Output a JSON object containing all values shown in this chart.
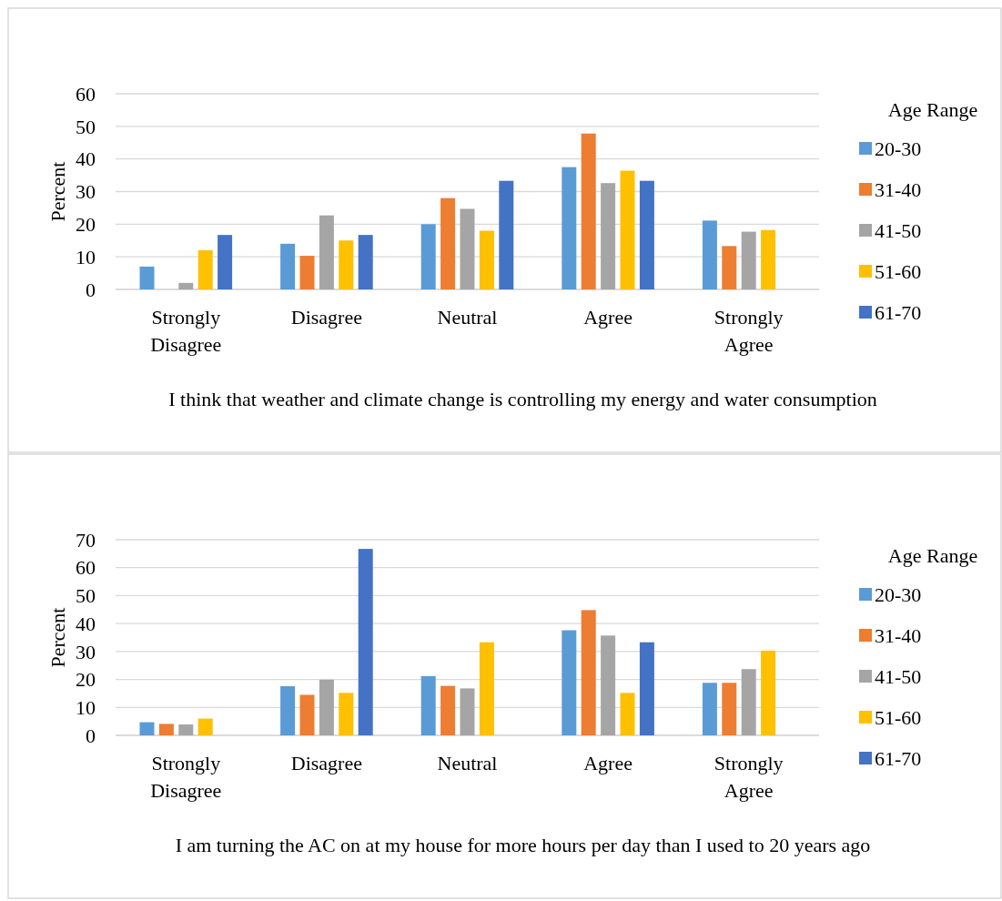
{
  "chart_data": [
    {
      "type": "bar",
      "title": "I think that weather and climate change is controlling my energy and water consumption",
      "ylabel": "Percent",
      "legend_title": "Age Range",
      "categories": [
        "Strongly Disagree",
        "Disagree",
        "Neutral",
        "Agree",
        "Strongly Agree"
      ],
      "ylim": [
        0,
        60
      ],
      "yticks": [
        0,
        10,
        20,
        30,
        40,
        50,
        60
      ],
      "grid": "y",
      "legend": "right",
      "series": [
        {
          "name": "20-30",
          "color": "#5b9bd5",
          "values": [
            7,
            14,
            20,
            37.5,
            21.1
          ]
        },
        {
          "name": "31-40",
          "color": "#ed7d31",
          "values": [
            0,
            10.3,
            28,
            47.8,
            13.3
          ]
        },
        {
          "name": "41-50",
          "color": "#a5a5a5",
          "values": [
            2,
            22.7,
            24.7,
            32.6,
            17.7
          ]
        },
        {
          "name": "51-60",
          "color": "#ffc000",
          "values": [
            12,
            15,
            18,
            36.4,
            18.2
          ]
        },
        {
          "name": "61-70",
          "color": "#4472c4",
          "values": [
            16.7,
            16.7,
            33.3,
            33.3,
            0
          ]
        }
      ]
    },
    {
      "type": "bar",
      "title": "I am turning the AC on at my house for more hours per day than I used to 20 years ago",
      "ylabel": "Percent",
      "legend_title": "Age Range",
      "categories": [
        "Strongly Disagree",
        "Disagree",
        "Neutral",
        "Agree",
        "Strongly Agree"
      ],
      "ylim": [
        0,
        70
      ],
      "yticks": [
        0,
        10,
        20,
        30,
        40,
        50,
        60,
        70
      ],
      "grid": "y",
      "legend": "right",
      "series": [
        {
          "name": "20-30",
          "color": "#5b9bd5",
          "values": [
            4.7,
            17.6,
            21.2,
            37.6,
            18.8
          ]
        },
        {
          "name": "31-40",
          "color": "#ed7d31",
          "values": [
            4.1,
            14.5,
            17.7,
            44.8,
            18.8
          ]
        },
        {
          "name": "41-50",
          "color": "#a5a5a5",
          "values": [
            3.9,
            19.9,
            16.8,
            35.7,
            23.7
          ]
        },
        {
          "name": "51-60",
          "color": "#ffc000",
          "values": [
            6,
            15.2,
            33.3,
            15.2,
            30.3
          ]
        },
        {
          "name": "61-70",
          "color": "#4472c4",
          "values": [
            0,
            66.7,
            0,
            33.3,
            0
          ]
        }
      ]
    }
  ]
}
